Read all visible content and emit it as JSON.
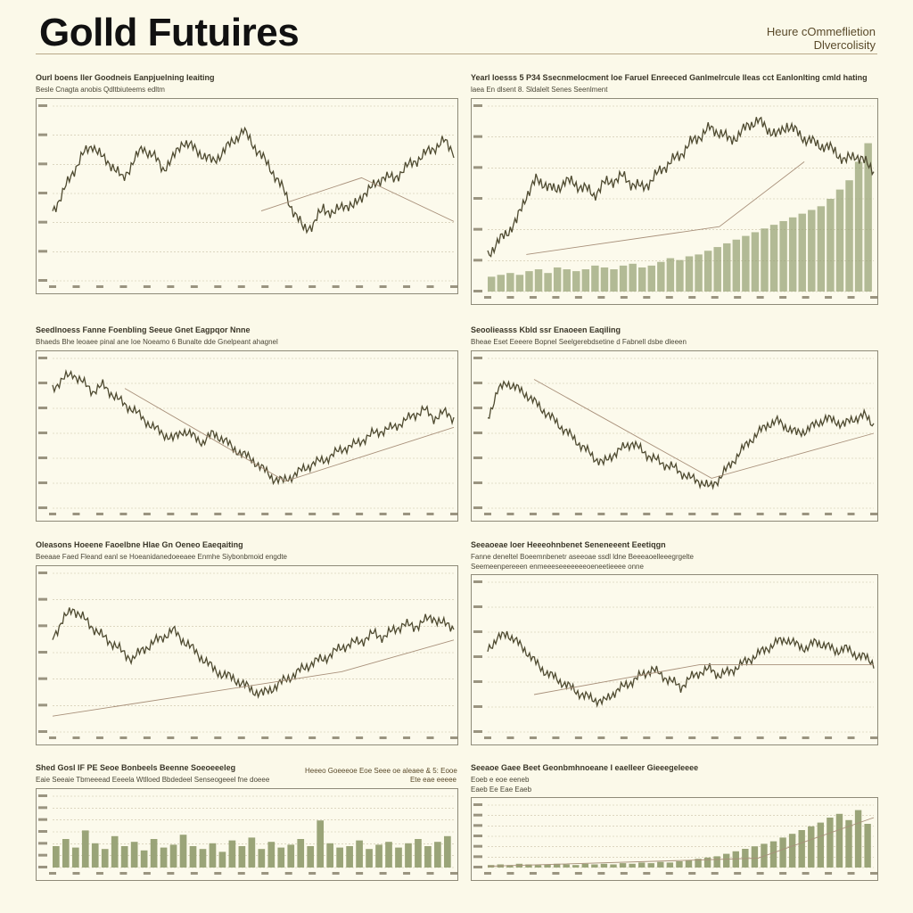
{
  "header": {
    "title": "Golld Futuires",
    "subtitle_line1": "Heure cOmmeflietion",
    "subtitle_line2": "Dlvercolisity"
  },
  "colors": {
    "line": "#4e4a30",
    "trend": "#a8907a",
    "bar": "#9aa478",
    "grid": "#c8c0a6",
    "tag": "#8a6a30"
  },
  "chart_data": [
    {
      "type": "line",
      "title": "Ourl boens ller Goodneis Eanpjuelning Ieaiting",
      "subtitle": "Besle Cnagta anobis Qdltbiuteems edltm",
      "xlabel": "",
      "ylabel": "",
      "ylim": [
        0,
        100
      ],
      "grid": true,
      "series": [
        {
          "values": [
            40,
            50,
            62,
            72,
            78,
            70,
            66,
            58,
            68,
            76,
            72,
            64,
            70,
            80,
            76,
            72,
            68,
            74,
            80,
            86,
            78,
            70,
            62,
            52,
            40,
            30,
            32,
            42,
            38,
            44,
            42,
            50,
            54,
            60,
            58,
            64,
            68,
            72,
            76,
            80,
            74
          ]
        }
      ],
      "trendline": [
        [
          0.52,
          0.6
        ],
        [
          0.77,
          0.41
        ],
        [
          1.0,
          0.66
        ]
      ],
      "volume": []
    },
    {
      "type": "line",
      "title": "Yearl loesss 5 P34 Ssecnmelocment loe Faruel Enreeced Ganlmelrcule Ileas cct Eanlonlting cmld hating",
      "subtitle": "laea En dlsent 8. Sldalelt Senes Seenlment",
      "xlabel": "",
      "ylabel": "",
      "ylim": [
        0,
        100
      ],
      "grid": true,
      "series": [
        {
          "values": [
            20,
            26,
            32,
            38,
            52,
            60,
            58,
            54,
            60,
            58,
            56,
            52,
            58,
            60,
            62,
            58,
            56,
            60,
            66,
            70,
            74,
            80,
            84,
            88,
            86,
            82,
            84,
            90,
            92,
            88,
            84,
            90,
            86,
            82,
            80,
            78,
            76,
            70,
            74,
            70,
            66
          ]
        }
      ],
      "trendline": [
        [
          0.1,
          0.8
        ],
        [
          0.6,
          0.65
        ],
        [
          0.82,
          0.3
        ]
      ],
      "volume": [
        8,
        9,
        10,
        9,
        11,
        12,
        10,
        13,
        12,
        11,
        12,
        14,
        13,
        12,
        14,
        15,
        13,
        14,
        16,
        18,
        17,
        19,
        20,
        22,
        24,
        26,
        28,
        30,
        32,
        34,
        36,
        38,
        40,
        42,
        44,
        46,
        50,
        55,
        60,
        70,
        80
      ]
    },
    {
      "type": "line",
      "title": "Seedlnoess Fanne Foenbling Seeue Gnet Eagpqor Nnne",
      "subtitle": "Bhaeds Bhe leoaee pinal ane Ioe Noeamo 6 Bunalte dde Gnelpeant ahagnel",
      "xlabel": "",
      "ylabel": "",
      "ylim": [
        0,
        100
      ],
      "grid": true,
      "series": [
        {
          "values": [
            80,
            86,
            90,
            84,
            78,
            82,
            76,
            70,
            66,
            60,
            54,
            50,
            46,
            52,
            48,
            44,
            50,
            46,
            40,
            36,
            32,
            26,
            20,
            18,
            22,
            26,
            30,
            32,
            36,
            40,
            42,
            46,
            50,
            52,
            54,
            58,
            62,
            66,
            60,
            64,
            60
          ]
        }
      ],
      "trendline": [
        [
          0.18,
          0.2
        ],
        [
          0.58,
          0.82
        ],
        [
          1.0,
          0.46
        ]
      ],
      "volume": []
    },
    {
      "type": "line",
      "title": "Seoolieasss Kbld ssr Enaoeen Eaqiling",
      "subtitle": "Bheae Eset Eeeere Bopnel Seelgerebdsetine d Fabnell dsbe dleeen",
      "xlabel": "",
      "ylabel": "",
      "ylim": [
        0,
        100
      ],
      "grid": true,
      "series": [
        {
          "values": [
            60,
            78,
            84,
            80,
            76,
            70,
            64,
            58,
            52,
            46,
            40,
            34,
            30,
            36,
            40,
            44,
            38,
            34,
            30,
            28,
            24,
            20,
            18,
            14,
            20,
            28,
            36,
            44,
            50,
            56,
            58,
            54,
            50,
            52,
            56,
            60,
            58,
            56,
            60,
            62,
            56
          ]
        }
      ],
      "trendline": [
        [
          0.12,
          0.14
        ],
        [
          0.58,
          0.8
        ],
        [
          1.0,
          0.5
        ]
      ],
      "volume": []
    },
    {
      "type": "line",
      "title": "Oleasons Hoeene Faoelbne Hlae Gn Oeneo Eaeqaiting",
      "subtitle": "Beeaae Faed Fleand eanl se Hoeanidanedoeeaee Enmhe Siybonbmoid engdte",
      "xlabel": "",
      "ylabel": "",
      "ylim": [
        0,
        100
      ],
      "grid": true,
      "series": [
        {
          "values": [
            60,
            70,
            78,
            72,
            66,
            60,
            56,
            50,
            46,
            52,
            56,
            60,
            64,
            58,
            52,
            46,
            40,
            36,
            34,
            30,
            26,
            24,
            28,
            32,
            36,
            40,
            44,
            46,
            50,
            54,
            56,
            58,
            62,
            60,
            64,
            68,
            66,
            70,
            72,
            68,
            66
          ]
        }
      ],
      "trendline": [
        [
          0.0,
          0.9
        ],
        [
          0.72,
          0.62
        ],
        [
          1.0,
          0.42
        ]
      ],
      "volume": []
    },
    {
      "type": "line",
      "title": "Seeaoeae loer Heeeohnbenet Seneneeent Eeetiqgn",
      "subtitle": "Fanne deneltel Boeemnbenetr aseeoae ssdl ldne Beeeaoelleeegrgelte",
      "subtitle2": "Seemeenpereeen enmeeeseeeeeeeoeneetieeee onne",
      "xlabel": "",
      "ylabel": "",
      "ylim": [
        0,
        100
      ],
      "grid": true,
      "series": [
        {
          "values": [
            56,
            62,
            66,
            60,
            54,
            46,
            40,
            36,
            32,
            28,
            24,
            22,
            20,
            26,
            30,
            34,
            38,
            42,
            38,
            34,
            30,
            36,
            40,
            42,
            38,
            40,
            44,
            48,
            52,
            56,
            60,
            62,
            58,
            56,
            60,
            58,
            54,
            56,
            52,
            50,
            46
          ]
        }
      ],
      "trendline": [
        [
          0.12,
          0.75
        ],
        [
          0.55,
          0.55
        ],
        [
          1.0,
          0.55
        ]
      ],
      "volume": []
    },
    {
      "type": "bar",
      "title": "Shed Gosl IF PE Seoe Bonbeels Beenne Soeoeeeleg",
      "subtitle": "Eaie Seeaie Tbmeeead Eeeela Wtlloed Bbdedeel Senseogeeel fne doeee",
      "note_line1": "Heeeo Goeeeoe Eoe Seee oe aleaee & 5: Eooe",
      "note_line2": "Ete eae eeeee",
      "xlabel": "",
      "ylabel": "",
      "ylim": [
        0,
        100
      ],
      "grid": true,
      "series": [
        {
          "values": [
            30,
            40,
            28,
            52,
            34,
            26,
            44,
            30,
            36,
            24,
            40,
            28,
            32,
            46,
            30,
            26,
            34,
            22,
            38,
            30,
            42,
            26,
            36,
            28,
            32,
            40,
            30,
            66,
            34,
            28,
            30,
            38,
            26,
            32,
            36,
            28,
            34,
            40,
            30,
            36,
            44
          ]
        }
      ],
      "trendline": [],
      "volume": []
    },
    {
      "type": "bar",
      "title": "Seeaoe Gaee Beet Geonbmhnoeane I eaelleer Gieeegeleeee",
      "subtitle": "Eoeb e eoe eeneb",
      "subtitle2": "Eaeb Ee Eae Eaeb",
      "xlabel": "",
      "ylabel": "",
      "ylim": [
        0,
        100
      ],
      "grid": true,
      "series": [
        {
          "values": [
            4,
            5,
            4,
            6,
            5,
            4,
            5,
            6,
            5,
            4,
            6,
            5,
            6,
            5,
            7,
            6,
            8,
            7,
            9,
            8,
            10,
            12,
            14,
            16,
            18,
            22,
            26,
            30,
            34,
            38,
            42,
            48,
            54,
            60,
            66,
            72,
            80,
            86,
            76,
            92,
            70
          ]
        }
      ],
      "trendline": [
        [
          0.0,
          0.98
        ],
        [
          0.7,
          0.85
        ],
        [
          1.0,
          0.2
        ]
      ],
      "volume": []
    }
  ]
}
